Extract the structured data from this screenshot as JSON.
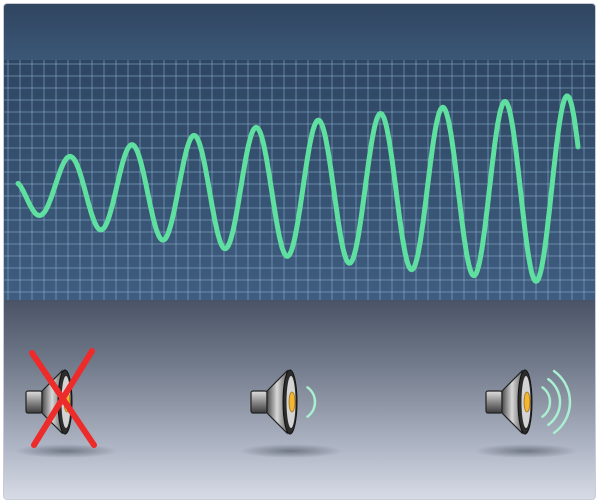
{
  "scene": {
    "background_top": "#2f4560",
    "background_bottom": "#d7dbe6",
    "grid_color": "#8fb4d4",
    "wave_color": "#5fe0a0",
    "wave": {
      "cycles": 9,
      "amplitude_start": 0.15,
      "amplitude_end": 1.0
    }
  },
  "speakers": [
    {
      "state": "muted",
      "icon": "speaker-muted-icon",
      "sound_waves": 0,
      "cross_color": "#ee2b2b"
    },
    {
      "state": "low",
      "icon": "speaker-low-icon",
      "sound_waves": 1,
      "wave_color": "#a8f0d0"
    },
    {
      "state": "high",
      "icon": "speaker-high-icon",
      "sound_waves": 3,
      "wave_color": "#a8f0d0"
    }
  ]
}
